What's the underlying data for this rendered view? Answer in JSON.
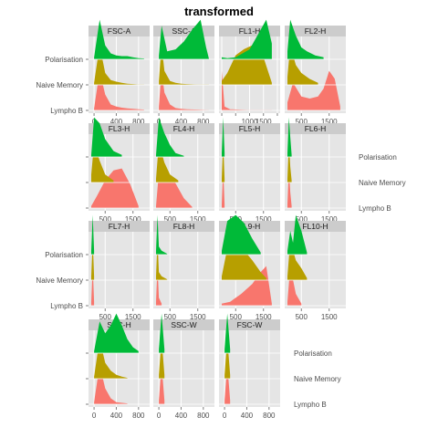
{
  "chart_data": {
    "type": "area",
    "title": "transformed",
    "subtitle": "",
    "xlabel": "",
    "ylabel": "",
    "grid": true,
    "legend": "none",
    "colors": {
      "Polarisation": "#00ba38",
      "Naive Memory": "#b79f00",
      "Lympho B": "#f8766d",
      "panel_bg": "#e5e5e5",
      "strip_bg": "#cccccc",
      "grid": "#ffffff"
    },
    "series_names": [
      "Polarisation",
      "Naive Memory",
      "Lympho B"
    ],
    "panels": [
      {
        "name": "FSC-A",
        "xlim": [
          -100,
          1000
        ],
        "ticks": [
          0,
          400,
          800
        ],
        "tick_labels": [
          "0",
          "400",
          "800"
        ],
        "series": [
          {
            "name": "Polarisation",
            "x": [
              0,
              100,
              200,
              300,
              400,
              500,
              600,
              700,
              800,
              900
            ],
            "y": [
              0.05,
              1.0,
              0.35,
              0.15,
              0.1,
              0.08,
              0.08,
              0.05,
              0.03,
              0.02
            ]
          },
          {
            "name": "Naive Memory",
            "x": [
              0,
              100,
              200,
              300,
              400,
              500,
              600,
              700,
              800,
              900
            ],
            "y": [
              0.05,
              1.0,
              0.3,
              0.12,
              0.08,
              0.05,
              0.03,
              0.02,
              0.01,
              0.01
            ]
          },
          {
            "name": "Lympho B",
            "x": [
              0,
              100,
              200,
              300,
              400,
              500,
              600,
              700,
              800,
              900
            ],
            "y": [
              0.05,
              1.0,
              0.4,
              0.15,
              0.1,
              0.07,
              0.05,
              0.04,
              0.03,
              0.02
            ]
          }
        ]
      },
      {
        "name": "SSC-A",
        "xlim": [
          -100,
          1000
        ],
        "ticks": [
          0,
          400,
          800
        ],
        "tick_labels": [
          "0",
          "400",
          "800"
        ],
        "series": [
          {
            "name": "Polarisation",
            "x": [
              0,
              50,
              150,
              300,
              450,
              600,
              750,
              850,
              900
            ],
            "y": [
              0.1,
              0.85,
              0.2,
              0.25,
              0.45,
              0.75,
              1.0,
              0.3,
              0.02
            ]
          },
          {
            "name": "Naive Memory",
            "x": [
              0,
              50,
              100,
              200,
              300,
              400,
              500,
              700,
              900
            ],
            "y": [
              0.1,
              1.0,
              0.35,
              0.1,
              0.05,
              0.03,
              0.02,
              0.01,
              0.01
            ]
          },
          {
            "name": "Lympho B",
            "x": [
              0,
              50,
              100,
              200,
              300,
              400,
              500,
              700,
              900
            ],
            "y": [
              0.1,
              1.0,
              0.45,
              0.15,
              0.06,
              0.04,
              0.03,
              0.02,
              0.01
            ]
          }
        ]
      },
      {
        "name": "FL1-H",
        "xlim": [
          -100,
          2100
        ],
        "ticks": [
          0,
          500,
          1000,
          1500,
          2000
        ],
        "tick_labels": [
          "",
          "",
          "1000",
          "1500",
          ""
        ],
        "series": [
          {
            "name": "Polarisation",
            "x": [
              0,
              200,
              500,
              1000,
              1400,
              1600,
              1800
            ],
            "y": [
              0.05,
              0.03,
              0.05,
              0.25,
              0.75,
              1.0,
              0.4
            ]
          },
          {
            "name": "Naive Memory",
            "x": [
              0,
              200,
              500,
              800,
              1100,
              1300,
              1500,
              1800
            ],
            "y": [
              0.1,
              0.3,
              0.75,
              0.9,
              1.0,
              0.95,
              0.7,
              0.05
            ]
          },
          {
            "name": "Lympho B",
            "x": [
              0,
              100,
              300,
              600,
              1000,
              1500,
              1800
            ],
            "y": [
              1.0,
              0.1,
              0.03,
              0.02,
              0.01,
              0.01,
              0.01
            ]
          }
        ]
      },
      {
        "name": "FL2-H",
        "xlim": [
          -100,
          2100
        ],
        "ticks": [
          500,
          1500
        ],
        "tick_labels": [
          "500",
          "1500"
        ],
        "series": [
          {
            "name": "Polarisation",
            "x": [
              0,
              100,
              300,
              500,
              700,
              1000,
              1300
            ],
            "y": [
              0.2,
              1.0,
              0.6,
              0.3,
              0.2,
              0.1,
              0.05
            ]
          },
          {
            "name": "Naive Memory",
            "x": [
              0,
              100,
              300,
              500,
              800,
              1100
            ],
            "y": [
              0.2,
              1.0,
              0.5,
              0.3,
              0.15,
              0.05
            ]
          },
          {
            "name": "Lympho B",
            "x": [
              0,
              200,
              500,
              800,
              1100,
              1300,
              1500,
              1700,
              1900
            ],
            "y": [
              0.2,
              0.7,
              0.35,
              0.3,
              0.35,
              0.55,
              1.0,
              0.8,
              0.1
            ]
          }
        ]
      },
      {
        "name": "FL3-H",
        "xlim": [
          -100,
          2100
        ],
        "ticks": [
          500,
          1500
        ],
        "tick_labels": [
          "500",
          "1500"
        ],
        "series": [
          {
            "name": "Polarisation",
            "x": [
              0,
              100,
              300,
              500,
              800,
              1100
            ],
            "y": [
              0.05,
              1.0,
              0.85,
              0.45,
              0.15,
              0.05
            ]
          },
          {
            "name": "Naive Memory",
            "x": [
              0,
              100,
              300,
              500,
              800
            ],
            "y": [
              0.2,
              1.0,
              0.55,
              0.2,
              0.05
            ]
          },
          {
            "name": "Lympho B",
            "x": [
              0,
              200,
              500,
              800,
              1100,
              1400,
              1700
            ],
            "y": [
              0.05,
              0.3,
              0.7,
              0.95,
              1.0,
              0.6,
              0.05
            ]
          }
        ]
      },
      {
        "name": "FL4-H",
        "xlim": [
          -100,
          2100
        ],
        "ticks": [
          500,
          1500
        ],
        "tick_labels": [
          "500",
          "1500"
        ],
        "series": [
          {
            "name": "Polarisation",
            "x": [
              0,
              100,
              300,
              500,
              700,
              1000
            ],
            "y": [
              0.05,
              1.0,
              0.6,
              0.3,
              0.1,
              0.03
            ]
          },
          {
            "name": "Naive Memory",
            "x": [
              0,
              100,
              300,
              500,
              800
            ],
            "y": [
              0.1,
              1.0,
              0.5,
              0.2,
              0.05
            ]
          },
          {
            "name": "Lympho B",
            "x": [
              0,
              100,
              300,
              600,
              1000,
              1300
            ],
            "y": [
              0.05,
              0.9,
              1.0,
              0.75,
              0.25,
              0.03
            ]
          }
        ]
      },
      {
        "name": "FL5-H",
        "xlim": [
          -100,
          2100
        ],
        "ticks": [
          500,
          1500
        ],
        "tick_labels": [
          "500",
          "1500"
        ],
        "series": [
          {
            "name": "Polarisation",
            "x": [
              0,
              50,
              100
            ],
            "y": [
              0.1,
              1.0,
              0.1
            ]
          },
          {
            "name": "Naive Memory",
            "x": [
              0,
              50,
              100
            ],
            "y": [
              0.1,
              1.0,
              0.1
            ]
          },
          {
            "name": "Lympho B",
            "x": [
              0,
              50,
              100
            ],
            "y": [
              0.1,
              1.0,
              0.1
            ]
          }
        ]
      },
      {
        "name": "FL6-H",
        "xlim": [
          -100,
          2100
        ],
        "ticks": [
          500,
          1500
        ],
        "tick_labels": [
          "500",
          "1500"
        ],
        "series": [
          {
            "name": "Polarisation",
            "x": [
              0,
              50,
              100,
              150
            ],
            "y": [
              0.1,
              1.0,
              0.5,
              0.05
            ]
          },
          {
            "name": "Naive Memory",
            "x": [
              0,
              50,
              100,
              150
            ],
            "y": [
              0.1,
              1.0,
              0.4,
              0.05
            ]
          },
          {
            "name": "Lympho B",
            "x": [
              0,
              50,
              100,
              150
            ],
            "y": [
              0.1,
              1.0,
              0.4,
              0.05
            ]
          }
        ]
      },
      {
        "name": "FL7-H",
        "xlim": [
          -100,
          2100
        ],
        "ticks": [
          500,
          1500
        ],
        "tick_labels": [
          "500",
          "1500"
        ],
        "series": [
          {
            "name": "Polarisation",
            "x": [
              0,
              50,
              100
            ],
            "y": [
              0.1,
              1.0,
              0.1
            ]
          },
          {
            "name": "Naive Memory",
            "x": [
              0,
              50,
              100
            ],
            "y": [
              0.1,
              1.0,
              0.1
            ]
          },
          {
            "name": "Lympho B",
            "x": [
              0,
              50,
              100
            ],
            "y": [
              0.1,
              1.0,
              0.1
            ]
          }
        ]
      },
      {
        "name": "FL8-H",
        "xlim": [
          -100,
          2100
        ],
        "ticks": [
          500,
          1500
        ],
        "tick_labels": [
          "500",
          "1500"
        ],
        "series": [
          {
            "name": "Polarisation",
            "x": [
              0,
              50,
              100,
              200,
              400
            ],
            "y": [
              0.1,
              1.0,
              0.2,
              0.1,
              0.02
            ]
          },
          {
            "name": "Naive Memory",
            "x": [
              0,
              50,
              100,
              200,
              400
            ],
            "y": [
              0.1,
              1.0,
              0.2,
              0.1,
              0.02
            ]
          },
          {
            "name": "Lympho B",
            "x": [
              0,
              50,
              100,
              200
            ],
            "y": [
              0.1,
              1.0,
              0.2,
              0.05
            ]
          }
        ]
      },
      {
        "name": "FL9-H",
        "xlim": [
          -100,
          2100
        ],
        "ticks": [
          500,
          1500
        ],
        "tick_labels": [
          "500",
          "1500"
        ],
        "series": [
          {
            "name": "Polarisation",
            "x": [
              0,
              200,
              500,
              800,
              1100,
              1400
            ],
            "y": [
              0.1,
              0.85,
              1.0,
              0.8,
              0.4,
              0.05
            ]
          },
          {
            "name": "Naive Memory",
            "x": [
              0,
              200,
              500,
              800,
              1100,
              1400,
              1600
            ],
            "y": [
              0.1,
              0.8,
              1.0,
              0.75,
              0.5,
              0.2,
              0.05
            ]
          },
          {
            "name": "Lympho B",
            "x": [
              0,
              300,
              700,
              1100,
              1400,
              1600,
              1800
            ],
            "y": [
              0.05,
              0.1,
              0.3,
              0.55,
              0.85,
              1.0,
              0.05
            ]
          }
        ]
      },
      {
        "name": "FL10-H",
        "xlim": [
          -100,
          2100
        ],
        "ticks": [
          500,
          1500
        ],
        "tick_labels": [
          "500",
          "1500"
        ],
        "series": [
          {
            "name": "Polarisation",
            "x": [
              0,
              100,
              200,
              300,
              500,
              700
            ],
            "y": [
              0.1,
              0.6,
              0.3,
              1.0,
              0.6,
              0.05
            ]
          },
          {
            "name": "Naive Memory",
            "x": [
              0,
              100,
              300,
              500,
              700
            ],
            "y": [
              0.1,
              1.0,
              0.5,
              0.3,
              0.05
            ]
          },
          {
            "name": "Lympho B",
            "x": [
              0,
              100,
              300,
              500
            ],
            "y": [
              0.1,
              1.0,
              0.3,
              0.05
            ]
          }
        ]
      },
      {
        "name": "SSC-H",
        "xlim": [
          -100,
          1000
        ],
        "ticks": [
          0,
          400,
          800
        ],
        "tick_labels": [
          "0",
          "400",
          "800"
        ],
        "series": [
          {
            "name": "Polarisation",
            "x": [
              0,
              100,
              200,
              300,
              400,
              500,
              600,
              700,
              800
            ],
            "y": [
              0.05,
              0.8,
              0.5,
              0.7,
              1.0,
              0.7,
              0.35,
              0.15,
              0.05
            ]
          },
          {
            "name": "Naive Memory",
            "x": [
              0,
              100,
              200,
              300,
              400,
              500,
              600
            ],
            "y": [
              0.05,
              1.0,
              0.4,
              0.2,
              0.1,
              0.05,
              0.02
            ]
          },
          {
            "name": "Lympho B",
            "x": [
              0,
              100,
              200,
              300,
              400,
              600
            ],
            "y": [
              0.05,
              1.0,
              0.4,
              0.15,
              0.05,
              0.02
            ]
          }
        ]
      },
      {
        "name": "SSC-W",
        "xlim": [
          -100,
          1000
        ],
        "ticks": [
          0,
          400,
          800
        ],
        "tick_labels": [
          "0",
          "400",
          "800"
        ],
        "series": [
          {
            "name": "Polarisation",
            "x": [
              0,
              50,
              100
            ],
            "y": [
              0.1,
              1.0,
              0.1
            ]
          },
          {
            "name": "Naive Memory",
            "x": [
              0,
              50,
              100
            ],
            "y": [
              0.1,
              1.0,
              0.1
            ]
          },
          {
            "name": "Lympho B",
            "x": [
              0,
              50,
              100
            ],
            "y": [
              0.1,
              1.0,
              0.1
            ]
          }
        ]
      },
      {
        "name": "FSC-W",
        "xlim": [
          -100,
          1000
        ],
        "ticks": [
          0,
          400,
          800
        ],
        "tick_labels": [
          "0",
          "400",
          "800"
        ],
        "series": [
          {
            "name": "Polarisation",
            "x": [
              0,
              50,
              100
            ],
            "y": [
              0.1,
              1.0,
              0.1
            ]
          },
          {
            "name": "Naive Memory",
            "x": [
              0,
              50,
              100
            ],
            "y": [
              0.1,
              1.0,
              0.1
            ]
          },
          {
            "name": "Lympho B",
            "x": [
              0,
              50,
              100
            ],
            "y": [
              0.1,
              1.0,
              0.1
            ]
          }
        ]
      }
    ]
  }
}
